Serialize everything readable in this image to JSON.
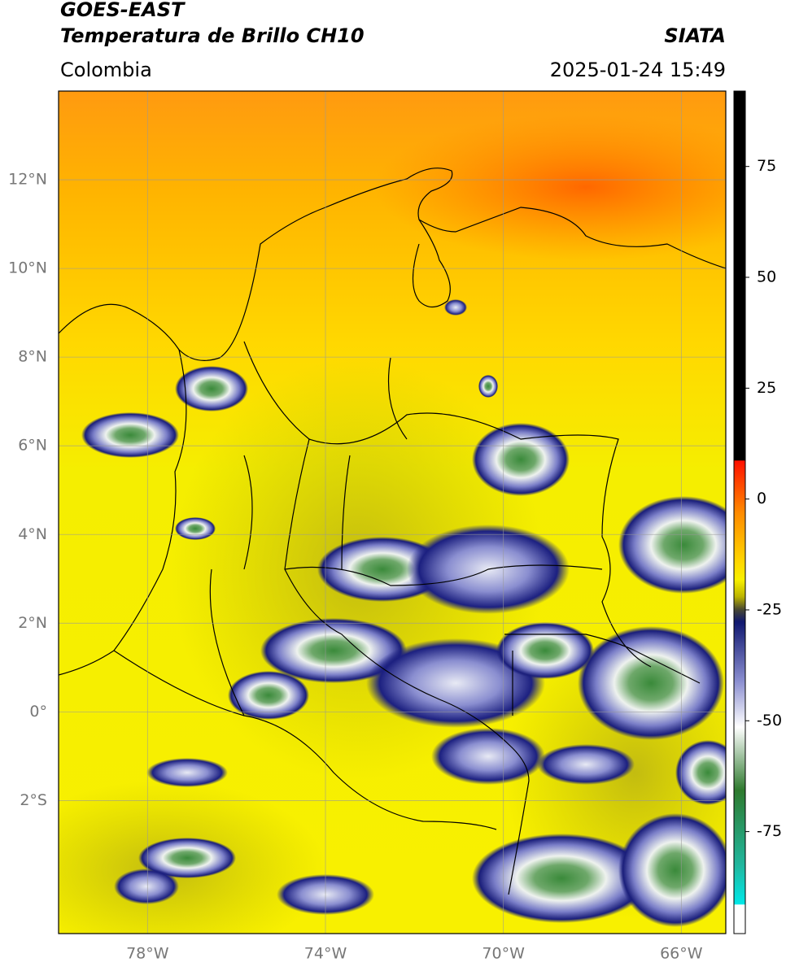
{
  "header": {
    "title": "GOES-EAST",
    "subtitle": "Temperatura de Brillo CH10",
    "agency": "SIATA",
    "region": "Colombia",
    "datetime": "2025-01-24 15:49"
  },
  "map": {
    "lon_range": [
      -80,
      -65
    ],
    "lat_range": [
      -5,
      14
    ],
    "lat_ticks": [
      {
        "value": 12,
        "label": "12°N"
      },
      {
        "value": 10,
        "label": "10°N"
      },
      {
        "value": 8,
        "label": "8°N"
      },
      {
        "value": 6,
        "label": "6°N"
      },
      {
        "value": 4,
        "label": "4°N"
      },
      {
        "value": 2,
        "label": "2°N"
      },
      {
        "value": 0,
        "label": "0°"
      },
      {
        "value": -2,
        "label": "2°S"
      }
    ],
    "lon_ticks": [
      {
        "value": -78,
        "label": "78°W"
      },
      {
        "value": -74,
        "label": "74°W"
      },
      {
        "value": -70,
        "label": "70°W"
      },
      {
        "value": -66,
        "label": "66°W"
      }
    ]
  },
  "colorbar": {
    "range": [
      -98,
      92
    ],
    "ticks": [
      75,
      50,
      25,
      0,
      -25,
      -50,
      -75
    ]
  }
}
